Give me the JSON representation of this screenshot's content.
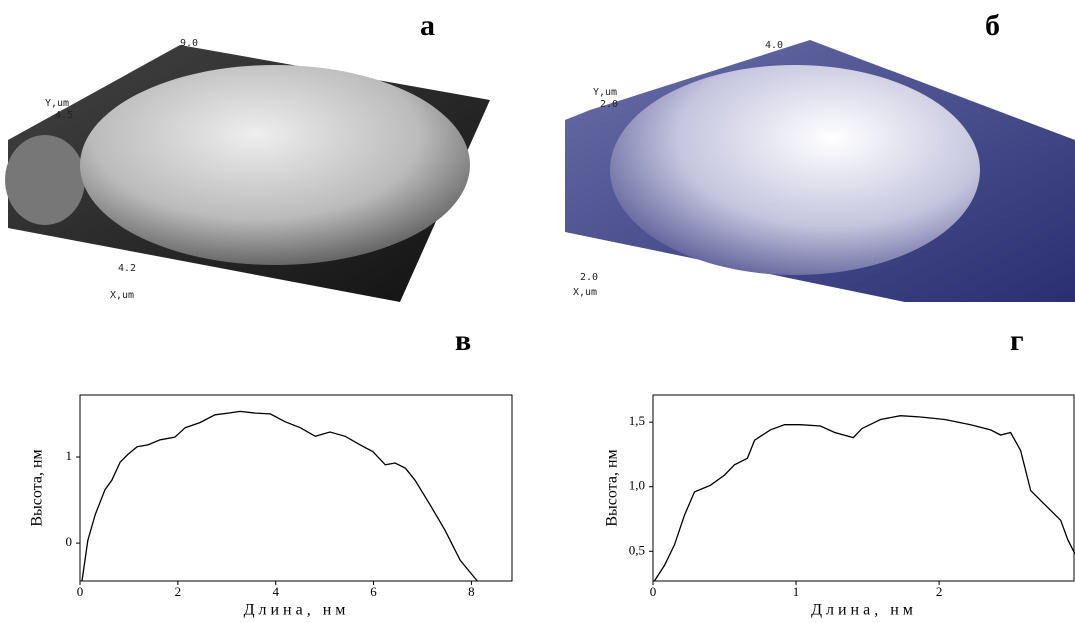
{
  "panel_labels": [
    "а",
    "б",
    "в",
    "г"
  ],
  "images": [
    {
      "labels": [
        "9.0",
        "Y,um",
        "4.5",
        "4.2",
        "X,um"
      ]
    },
    {
      "labels": [
        "4.0",
        "Y,um",
        "2.0",
        "2.0",
        "X,um"
      ]
    }
  ],
  "chart_data": [
    {
      "type": "line",
      "xlabel": "Длина, нм",
      "ylabel": "Высота, нм",
      "color": "#000000",
      "x": [
        0.04,
        0.16,
        0.31,
        0.51,
        0.65,
        0.82,
        0.98,
        1.17,
        1.39,
        1.64,
        1.94,
        2.15,
        2.45,
        2.76,
        3.03,
        3.27,
        3.58,
        3.89,
        4.19,
        4.5,
        4.81,
        5.11,
        5.42,
        5.73,
        5.99,
        6.24,
        6.44,
        6.65,
        6.85,
        7.16,
        7.46,
        7.77,
        8.12
      ],
      "values": [
        -0.44,
        0.03,
        0.33,
        0.62,
        0.73,
        0.94,
        1.03,
        1.12,
        1.14,
        1.2,
        1.23,
        1.34,
        1.4,
        1.49,
        1.51,
        1.53,
        1.51,
        1.5,
        1.41,
        1.34,
        1.24,
        1.29,
        1.24,
        1.14,
        1.06,
        0.91,
        0.93,
        0.87,
        0.73,
        0.44,
        0.15,
        -0.2,
        -0.44
      ],
      "xlim": [
        0,
        8.85
      ],
      "ylim": [
        -0.44,
        1.72
      ],
      "xticks": [
        0,
        2,
        4,
        6,
        8
      ],
      "yticks": [
        0,
        1
      ]
    },
    {
      "type": "line",
      "xlabel": "Длина, нм",
      "ylabel": "Высота, нм",
      "color": "#000000",
      "x": [
        0.01,
        0.08,
        0.15,
        0.22,
        0.29,
        0.4,
        0.5,
        0.57,
        0.66,
        0.71,
        0.82,
        0.92,
        1.03,
        1.17,
        1.27,
        1.4,
        1.46,
        1.59,
        1.73,
        1.87,
        2.04,
        2.22,
        2.36,
        2.43,
        2.5,
        2.57,
        2.64,
        2.74,
        2.85,
        2.9,
        2.95
      ],
      "values": [
        0.27,
        0.39,
        0.55,
        0.78,
        0.96,
        1.01,
        1.09,
        1.17,
        1.22,
        1.36,
        1.44,
        1.48,
        1.48,
        1.47,
        1.42,
        1.38,
        1.45,
        1.52,
        1.55,
        1.54,
        1.52,
        1.48,
        1.44,
        1.4,
        1.42,
        1.28,
        0.97,
        0.86,
        0.74,
        0.59,
        0.48
      ],
      "xlim": [
        0,
        2.95
      ],
      "ylim": [
        0.27,
        1.71
      ],
      "xticks": [
        0,
        1,
        2
      ],
      "yticks": [
        {
          "value": 0.5,
          "label": "0,5"
        },
        {
          "value": 1.0,
          "label": "1,0"
        },
        {
          "value": 1.5,
          "label": "1,5"
        }
      ]
    }
  ]
}
